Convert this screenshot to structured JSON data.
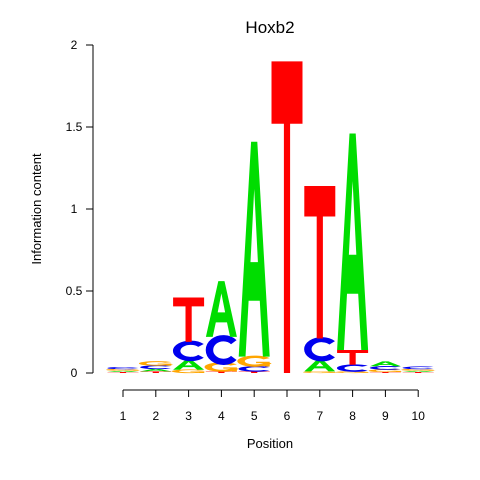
{
  "chart_data": {
    "type": "sequence-logo",
    "title": "Hoxb2",
    "xlabel": "Position",
    "ylabel": "Information content",
    "ylim": [
      0,
      2
    ],
    "y_ticks": [
      "0",
      "0.5",
      "1",
      "1.5",
      "2"
    ],
    "x_ticks": [
      "1",
      "2",
      "3",
      "4",
      "5",
      "6",
      "7",
      "8",
      "9",
      "10"
    ],
    "colors": {
      "A": "#00dd00",
      "C": "#0000ee",
      "G": "#ffa500",
      "T": "#ff0000"
    },
    "positions": [
      {
        "pos": "1",
        "letters": [
          {
            "base": "T",
            "height": 0.006
          },
          {
            "base": "A",
            "height": 0.008
          },
          {
            "base": "G",
            "height": 0.01
          },
          {
            "base": "C",
            "height": 0.012
          }
        ]
      },
      {
        "pos": "2",
        "letters": [
          {
            "base": "T",
            "height": 0.01
          },
          {
            "base": "A",
            "height": 0.015
          },
          {
            "base": "C",
            "height": 0.02
          },
          {
            "base": "G",
            "height": 0.025
          }
        ]
      },
      {
        "pos": "3",
        "letters": [
          {
            "base": "G",
            "height": 0.02
          },
          {
            "base": "A",
            "height": 0.06
          },
          {
            "base": "C",
            "height": 0.11
          },
          {
            "base": "T",
            "height": 0.27
          }
        ]
      },
      {
        "pos": "4",
        "letters": [
          {
            "base": "T",
            "height": 0.01
          },
          {
            "base": "G",
            "height": 0.05
          },
          {
            "base": "C",
            "height": 0.16
          },
          {
            "base": "A",
            "height": 0.34
          }
        ]
      },
      {
        "pos": "5",
        "letters": [
          {
            "base": "T",
            "height": 0.01
          },
          {
            "base": "C",
            "height": 0.03
          },
          {
            "base": "G",
            "height": 0.06
          },
          {
            "base": "A",
            "height": 1.31
          }
        ]
      },
      {
        "pos": "6",
        "letters": [
          {
            "base": "T",
            "height": 1.9
          }
        ]
      },
      {
        "pos": "7",
        "letters": [
          {
            "base": "G",
            "height": 0.01
          },
          {
            "base": "A",
            "height": 0.07
          },
          {
            "base": "C",
            "height": 0.13
          },
          {
            "base": "T",
            "height": 0.93
          }
        ]
      },
      {
        "pos": "8",
        "letters": [
          {
            "base": "G",
            "height": 0.01
          },
          {
            "base": "C",
            "height": 0.04
          },
          {
            "base": "T",
            "height": 0.09
          },
          {
            "base": "A",
            "height": 1.32
          }
        ]
      },
      {
        "pos": "9",
        "letters": [
          {
            "base": "T",
            "height": 0.006
          },
          {
            "base": "G",
            "height": 0.015
          },
          {
            "base": "C",
            "height": 0.02
          },
          {
            "base": "A",
            "height": 0.03
          }
        ]
      },
      {
        "pos": "10",
        "letters": [
          {
            "base": "T",
            "height": 0.006
          },
          {
            "base": "A",
            "height": 0.008
          },
          {
            "base": "G",
            "height": 0.01
          },
          {
            "base": "C",
            "height": 0.015
          }
        ]
      }
    ]
  }
}
